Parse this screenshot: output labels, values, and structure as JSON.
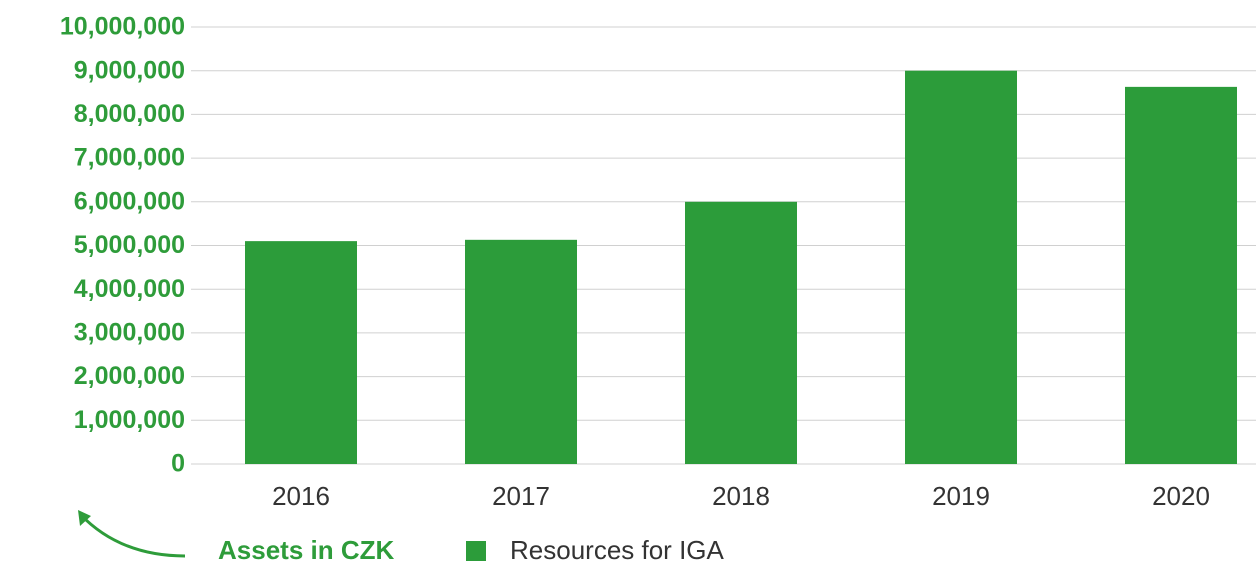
{
  "chart_data": {
    "type": "bar",
    "y_label": "Assets in CZK",
    "categories": [
      "2016",
      "2017",
      "2018",
      "2019",
      "2020"
    ],
    "series": [
      {
        "name": "Resources for IGA",
        "color": "#2c9c3a",
        "values": [
          5100000,
          5130000,
          6000000,
          9000000,
          8630000
        ]
      }
    ],
    "ylim": [
      0,
      10000000
    ],
    "yticks": [
      0,
      {
        "value": 1000000,
        "label": "1,000,000"
      },
      {
        "value": 2000000,
        "label": "2,000,000"
      },
      {
        "value": 3000000,
        "label": "3,000,000"
      },
      {
        "value": 4000000,
        "label": "4,000,000"
      },
      {
        "value": 5000000,
        "label": "5,000,000"
      },
      {
        "value": 6000000,
        "label": "6,000,000"
      },
      {
        "value": 7000000,
        "label": "7,000,000"
      },
      {
        "value": 8000000,
        "label": "8,000,000"
      },
      {
        "value": 9000000,
        "label": "9,000,000"
      },
      {
        "value": 10000000,
        "label": "10,000,000"
      }
    ],
    "grid": true,
    "legend": "bottom"
  }
}
